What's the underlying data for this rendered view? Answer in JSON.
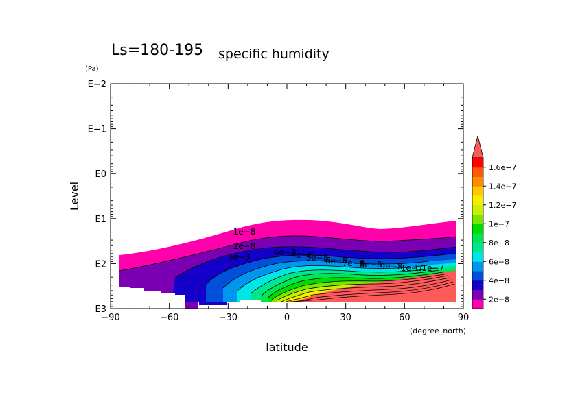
{
  "chart_data": {
    "type": "contour",
    "title": "Ls=180-195",
    "subtitle": "specific humidity",
    "xlabel": "latitude",
    "xunits": "(degree_north)",
    "ylabel": "Level",
    "yunits": "(Pa)",
    "xlim": [
      -90,
      90
    ],
    "ylim_log10": [
      3,
      -2
    ],
    "x_ticks": [
      -90,
      -60,
      -30,
      0,
      30,
      60,
      90
    ],
    "x_tick_labels": [
      "−90",
      "−60",
      "−30",
      "0",
      "30",
      "60",
      "90"
    ],
    "y_ticks_log10": [
      -2,
      -1,
      0,
      1,
      2,
      3
    ],
    "y_tick_labels": [
      "E−2",
      "E−1",
      "E0",
      "E1",
      "E2",
      "E3"
    ],
    "colorbar": {
      "levels": [
        0,
        2e-08,
        4e-08,
        6e-08,
        8e-08,
        1e-07,
        1.2e-07,
        1.4e-07,
        1.6e-07
      ],
      "labels": [
        "2e−8",
        "4e−8",
        "6e−8",
        "8e−8",
        "1e−7",
        "1.2e−7",
        "1.4e−7",
        "1.6e−7"
      ],
      "colors": [
        "#ff00aa",
        "#7b00b4",
        "#1400c8",
        "#0050dc",
        "#0096f0",
        "#00e6e6",
        "#00e68c",
        "#00e650",
        "#00dc00",
        "#78e600",
        "#c8f000",
        "#f0f000",
        "#ffc800",
        "#ff8c00",
        "#ff5a00",
        "#ff0000",
        "#ff5a5a"
      ],
      "extend": "max"
    },
    "contour_labels": [
      "1e−8",
      "2e−8",
      "3e−8",
      "4e−8",
      "5e−8",
      "6e−8",
      "7e−8",
      "8e−8",
      "9e−8",
      "1e−7"
    ],
    "annotations": [
      "1e−8",
      "2e−8",
      "3e−8",
      "4e−8",
      "4e−8",
      "5e−8",
      "6e−8",
      "7e−8",
      "8e−8",
      "9e−8",
      "1e−7",
      "1.1e−7"
    ]
  }
}
